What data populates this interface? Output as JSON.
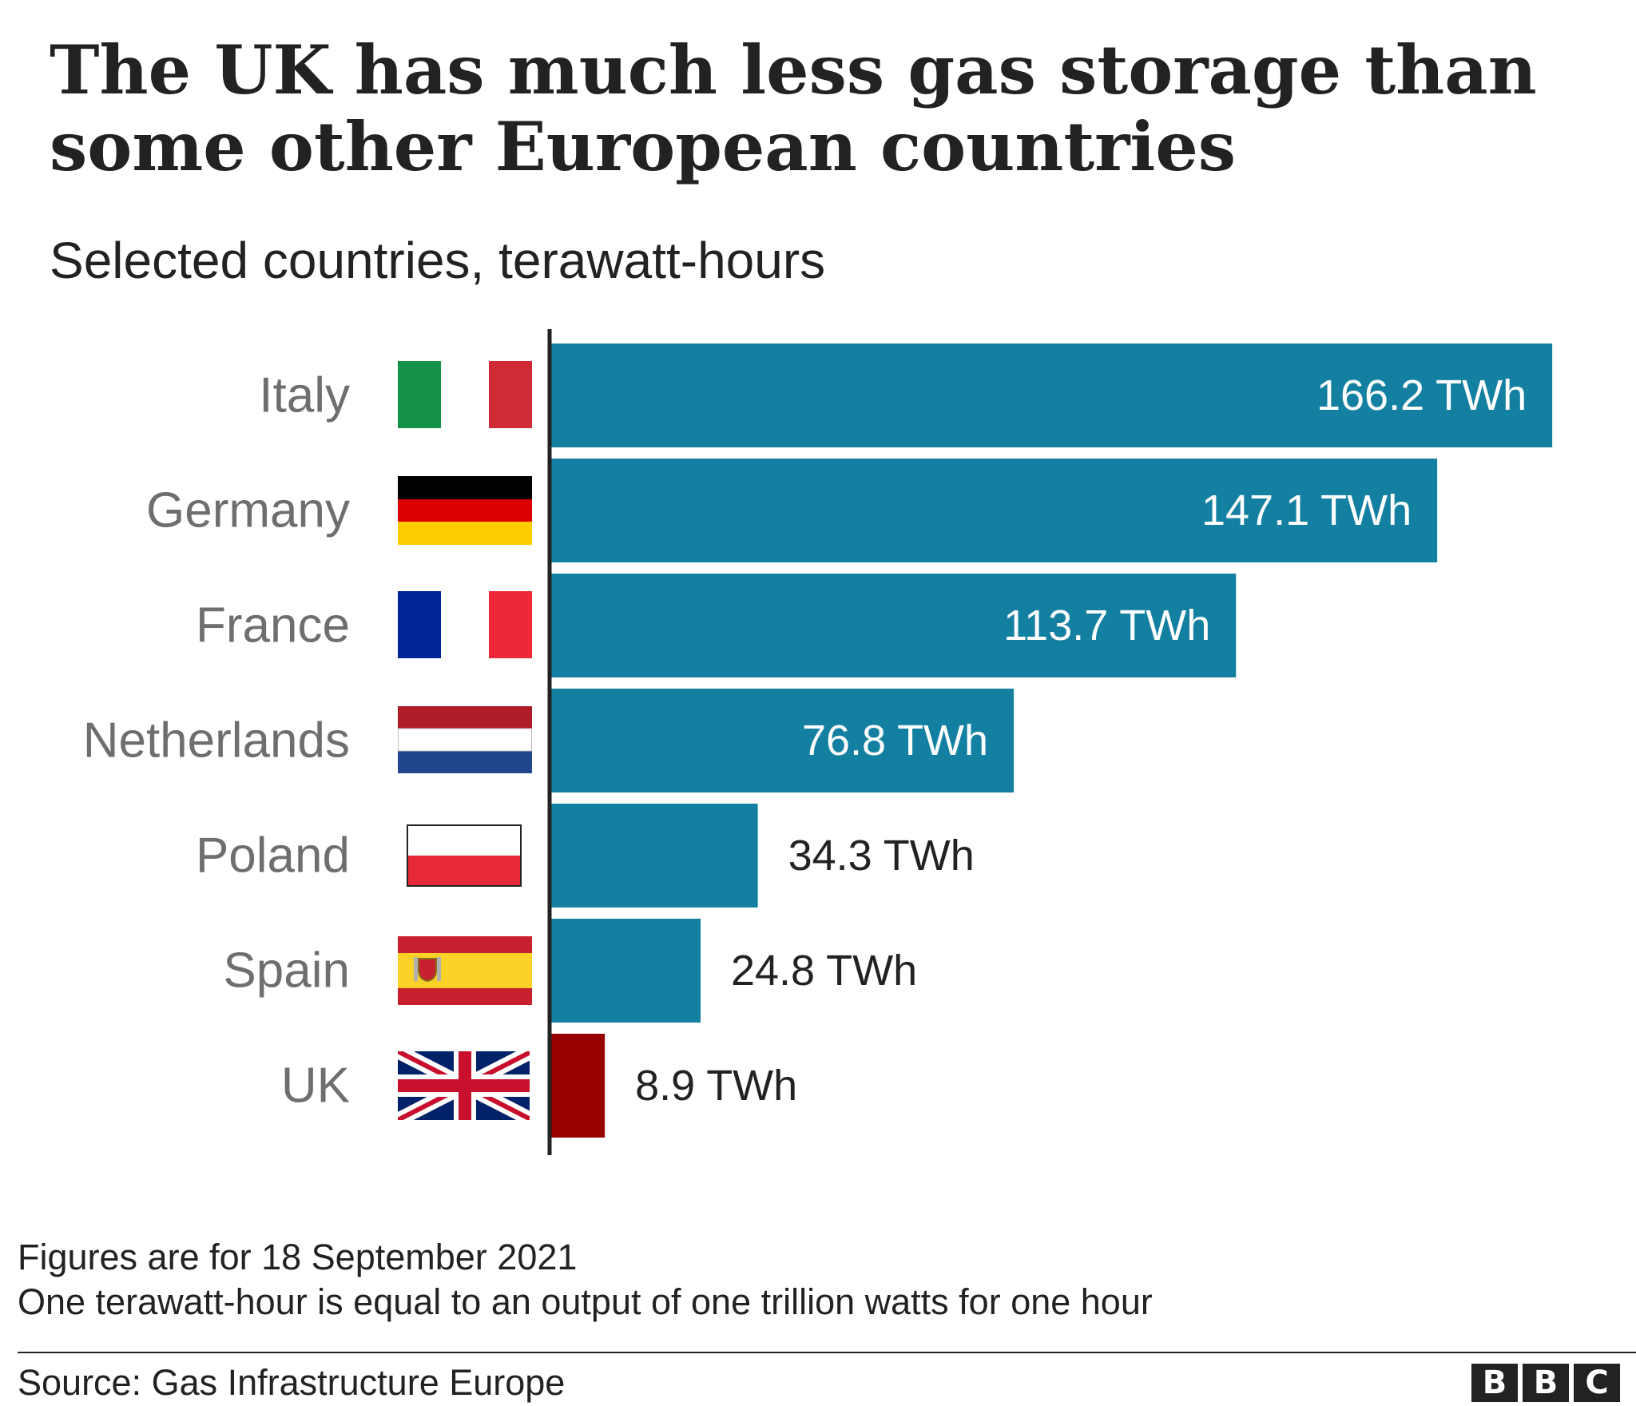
{
  "header": {
    "title": "The UK has much less gas storage than some other European countries",
    "subtitle": "Selected countries, terawatt-hours"
  },
  "chart_data": {
    "type": "bar",
    "orientation": "horizontal",
    "categories": [
      "Italy",
      "Germany",
      "France",
      "Netherlands",
      "Poland",
      "Spain",
      "UK"
    ],
    "values": [
      166.2,
      147.1,
      113.7,
      76.8,
      34.3,
      24.8,
      8.9
    ],
    "value_labels": [
      "166.2 TWh",
      "147.1 TWh",
      "113.7 TWh",
      "76.8 TWh",
      "34.3 TWh",
      "24.8 TWh",
      "8.9 TWh"
    ],
    "unit": "TWh",
    "bar_colors": [
      "#1380A1",
      "#1380A1",
      "#1380A1",
      "#1380A1",
      "#1380A1",
      "#1380A1",
      "#990000"
    ],
    "flags": [
      "italy-flag-icon",
      "germany-flag-icon",
      "france-flag-icon",
      "netherlands-flag-icon",
      "poland-flag-icon",
      "spain-flag-icon",
      "uk-flag-icon"
    ],
    "grid": false,
    "legend": "none"
  },
  "footer": {
    "note_date": "Figures are for 18 September 2021",
    "note_definition": "One terawatt-hour is equal to an output of one trillion watts for one hour",
    "source": "Source: Gas Infrastructure Europe",
    "logo_letters": [
      "B",
      "B",
      "C"
    ]
  },
  "colors": {
    "bar": "#1380A1",
    "highlight": "#990000",
    "category_label": "#6E6E6E",
    "text": "#222222"
  }
}
